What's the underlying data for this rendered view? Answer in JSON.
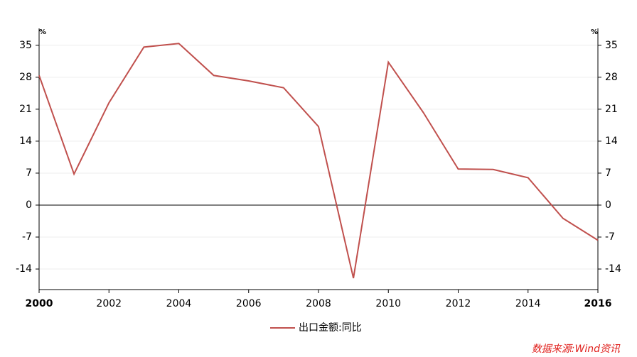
{
  "chart_data": {
    "type": "line",
    "y_unit": "%",
    "y2_unit": "%",
    "x": [
      2000,
      2001,
      2002,
      2003,
      2004,
      2005,
      2006,
      2007,
      2008,
      2009,
      2010,
      2011,
      2012,
      2013,
      2014,
      2015,
      2016
    ],
    "series": [
      {
        "name": "出口金额:同比",
        "color": "#c0504d",
        "values": [
          28.4,
          6.8,
          22.4,
          34.6,
          35.4,
          28.4,
          27.2,
          25.7,
          17.2,
          -16.0,
          31.3,
          20.3,
          7.9,
          7.8,
          6.0,
          -2.9,
          -7.7
        ]
      }
    ],
    "xlim": [
      2000,
      2016
    ],
    "xticks": [
      2000,
      2002,
      2004,
      2006,
      2008,
      2010,
      2012,
      2014,
      2016
    ],
    "ylim": [
      -18.5,
      38.7
    ],
    "yticks": [
      -14,
      -7,
      0,
      7,
      14,
      21,
      28,
      35
    ],
    "y2lim": [
      -18.5,
      38.7
    ],
    "y2ticks": [
      -14,
      -7,
      0,
      7,
      14,
      21,
      28,
      35
    ],
    "grid": true,
    "legend": "bottom",
    "source": "数据来源:Wind资讯"
  }
}
